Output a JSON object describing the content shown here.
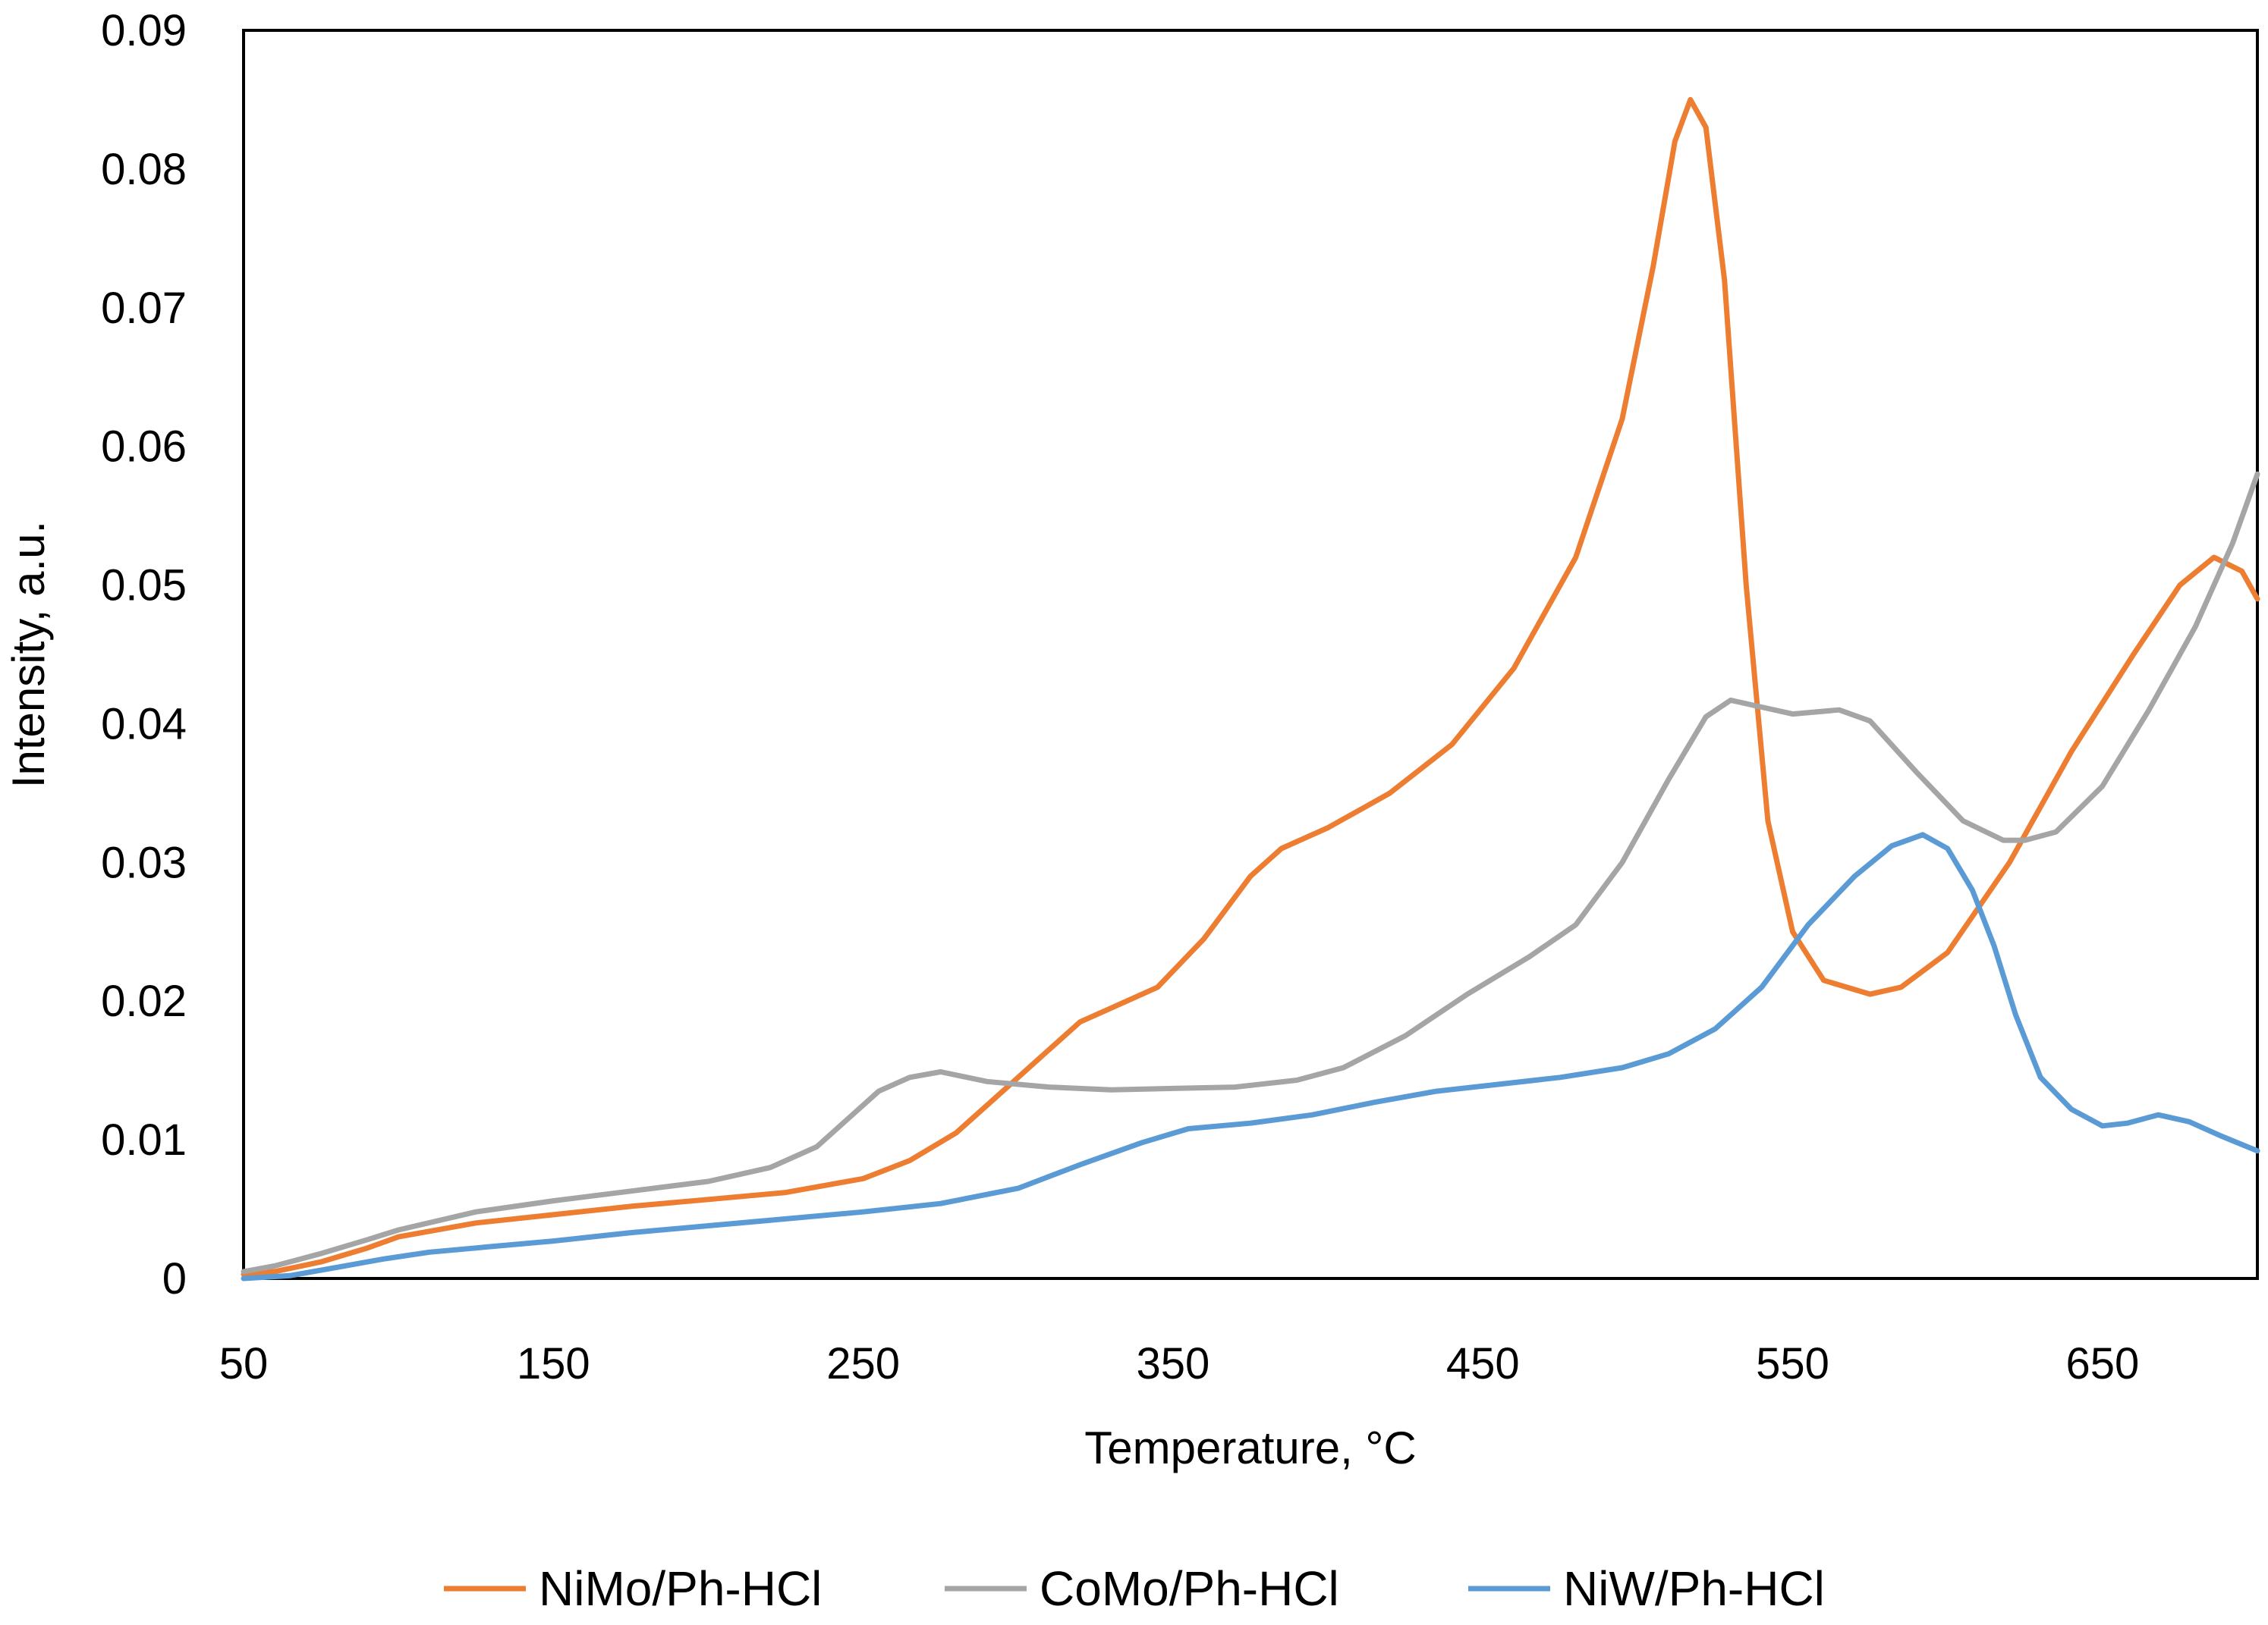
{
  "chart_data": {
    "type": "line",
    "title": "",
    "xlabel": "Temperature, °C",
    "ylabel": "Intensity, a.u.",
    "xlim": [
      50,
      700
    ],
    "ylim": [
      0,
      0.09
    ],
    "grid": false,
    "legend_position": "bottom",
    "x_ticks": [
      50,
      150,
      250,
      350,
      450,
      550,
      650
    ],
    "x_tick_labels": [
      "50",
      "150",
      "250",
      "350",
      "450",
      "550",
      "650"
    ],
    "y_ticks": [
      0,
      0.01,
      0.02,
      0.03,
      0.04,
      0.05,
      0.06,
      0.07,
      0.08,
      0.09
    ],
    "y_tick_labels": [
      "0",
      "0.01",
      "0.02",
      "0.03",
      "0.04",
      "0.05",
      "0.06",
      "0.07",
      "0.08",
      "0.09"
    ],
    "series": [
      {
        "name": "NiMo/Ph-HCl",
        "color": "#ED7D31",
        "points": [
          [
            50,
            0.0003
          ],
          [
            60,
            0.0005
          ],
          [
            75,
            0.0012
          ],
          [
            90,
            0.0022
          ],
          [
            100,
            0.003
          ],
          [
            125,
            0.004
          ],
          [
            150,
            0.0046
          ],
          [
            175,
            0.0052
          ],
          [
            200,
            0.0057
          ],
          [
            225,
            0.0062
          ],
          [
            250,
            0.0072
          ],
          [
            265,
            0.0085
          ],
          [
            280,
            0.0105
          ],
          [
            295,
            0.0135
          ],
          [
            310,
            0.0165
          ],
          [
            320,
            0.0185
          ],
          [
            330,
            0.0195
          ],
          [
            345,
            0.021
          ],
          [
            360,
            0.0245
          ],
          [
            375,
            0.029
          ],
          [
            385,
            0.031
          ],
          [
            400,
            0.0325
          ],
          [
            420,
            0.035
          ],
          [
            440,
            0.0385
          ],
          [
            460,
            0.044
          ],
          [
            480,
            0.052
          ],
          [
            495,
            0.062
          ],
          [
            505,
            0.073
          ],
          [
            512,
            0.082
          ],
          [
            517,
            0.085
          ],
          [
            522,
            0.083
          ],
          [
            528,
            0.072
          ],
          [
            535,
            0.05
          ],
          [
            542,
            0.033
          ],
          [
            550,
            0.025
          ],
          [
            560,
            0.0215
          ],
          [
            575,
            0.0205
          ],
          [
            585,
            0.021
          ],
          [
            600,
            0.0235
          ],
          [
            620,
            0.03
          ],
          [
            640,
            0.038
          ],
          [
            660,
            0.045
          ],
          [
            675,
            0.05
          ],
          [
            686,
            0.052
          ],
          [
            695,
            0.051
          ],
          [
            700,
            0.049
          ]
        ]
      },
      {
        "name": "CoMo/Ph-HCl",
        "color": "#A5A5A5",
        "points": [
          [
            50,
            0.0005
          ],
          [
            60,
            0.0009
          ],
          [
            75,
            0.0018
          ],
          [
            90,
            0.0028
          ],
          [
            100,
            0.0035
          ],
          [
            125,
            0.0048
          ],
          [
            150,
            0.0056
          ],
          [
            175,
            0.0063
          ],
          [
            200,
            0.007
          ],
          [
            220,
            0.008
          ],
          [
            235,
            0.0095
          ],
          [
            245,
            0.0115
          ],
          [
            255,
            0.0135
          ],
          [
            265,
            0.0145
          ],
          [
            275,
            0.0149
          ],
          [
            290,
            0.0142
          ],
          [
            310,
            0.0138
          ],
          [
            330,
            0.0136
          ],
          [
            350,
            0.0137
          ],
          [
            370,
            0.0138
          ],
          [
            390,
            0.0143
          ],
          [
            405,
            0.0152
          ],
          [
            425,
            0.0175
          ],
          [
            445,
            0.0205
          ],
          [
            465,
            0.0232
          ],
          [
            480,
            0.0255
          ],
          [
            495,
            0.03
          ],
          [
            510,
            0.036
          ],
          [
            522,
            0.0405
          ],
          [
            530,
            0.0417
          ],
          [
            540,
            0.0412
          ],
          [
            550,
            0.0407
          ],
          [
            565,
            0.041
          ],
          [
            575,
            0.0402
          ],
          [
            590,
            0.0365
          ],
          [
            605,
            0.033
          ],
          [
            618,
            0.0316
          ],
          [
            625,
            0.0316
          ],
          [
            635,
            0.0322
          ],
          [
            650,
            0.0355
          ],
          [
            665,
            0.041
          ],
          [
            680,
            0.047
          ],
          [
            692,
            0.053
          ],
          [
            700,
            0.058
          ]
        ]
      },
      {
        "name": "NiW/Ph-HCl",
        "color": "#5B9BD5",
        "points": [
          [
            50,
            0.0
          ],
          [
            65,
            0.0002
          ],
          [
            80,
            0.0008
          ],
          [
            95,
            0.0014
          ],
          [
            110,
            0.0019
          ],
          [
            130,
            0.0023
          ],
          [
            150,
            0.0027
          ],
          [
            175,
            0.0033
          ],
          [
            200,
            0.0038
          ],
          [
            225,
            0.0043
          ],
          [
            250,
            0.0048
          ],
          [
            275,
            0.0054
          ],
          [
            300,
            0.0065
          ],
          [
            320,
            0.0082
          ],
          [
            340,
            0.0098
          ],
          [
            355,
            0.0108
          ],
          [
            375,
            0.0112
          ],
          [
            395,
            0.0118
          ],
          [
            415,
            0.0127
          ],
          [
            435,
            0.0135
          ],
          [
            455,
            0.014
          ],
          [
            475,
            0.0145
          ],
          [
            495,
            0.0152
          ],
          [
            510,
            0.0162
          ],
          [
            525,
            0.018
          ],
          [
            540,
            0.021
          ],
          [
            555,
            0.0255
          ],
          [
            570,
            0.029
          ],
          [
            582,
            0.0312
          ],
          [
            592,
            0.032
          ],
          [
            600,
            0.031
          ],
          [
            608,
            0.028
          ],
          [
            615,
            0.024
          ],
          [
            622,
            0.019
          ],
          [
            630,
            0.0145
          ],
          [
            640,
            0.0122
          ],
          [
            650,
            0.011
          ],
          [
            658,
            0.0112
          ],
          [
            668,
            0.0118
          ],
          [
            678,
            0.0113
          ],
          [
            688,
            0.0103
          ],
          [
            700,
            0.0092
          ]
        ]
      }
    ]
  }
}
